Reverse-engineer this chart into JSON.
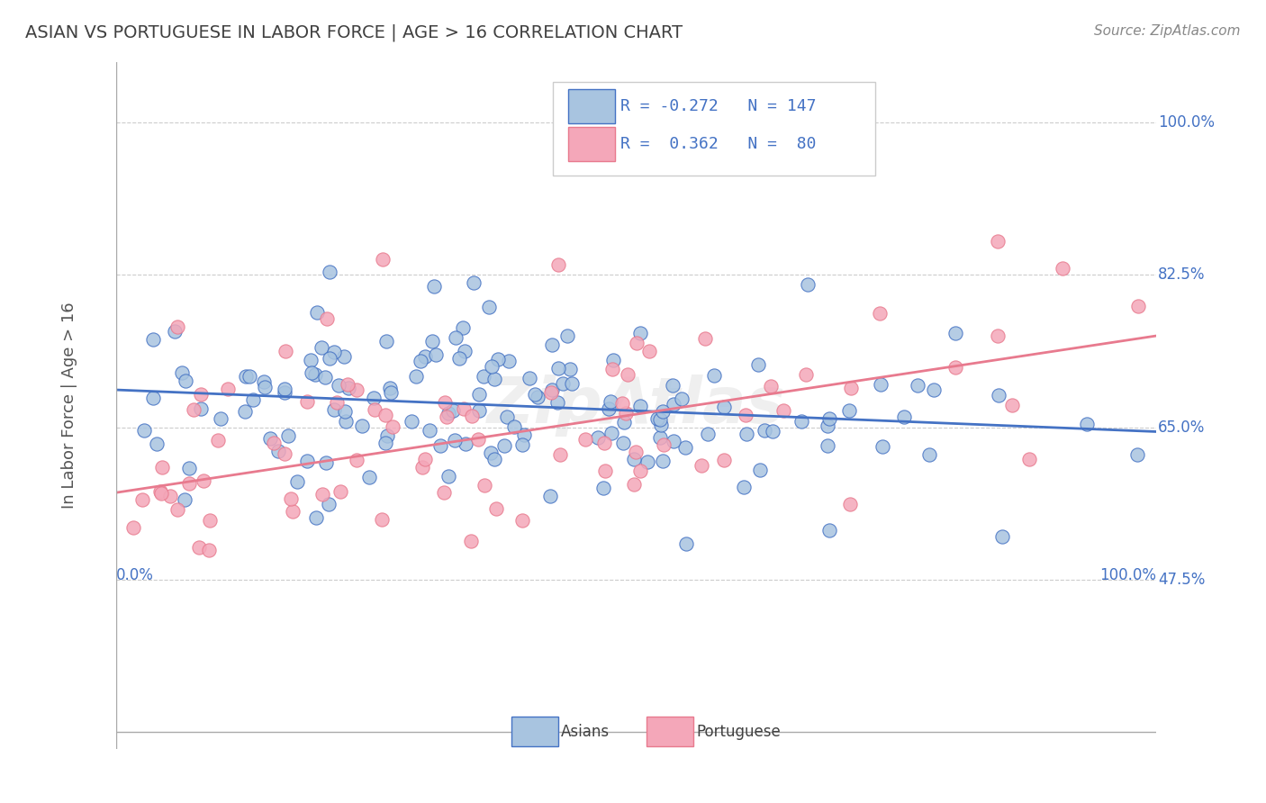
{
  "title": "ASIAN VS PORTUGUESE IN LABOR FORCE | AGE > 16 CORRELATION CHART",
  "source": "Source: ZipAtlas.com",
  "xlabel": "",
  "ylabel": "In Labor Force | Age > 16",
  "xlim": [
    0.0,
    1.0
  ],
  "ylim": [
    0.3,
    1.05
  ],
  "x_tick_labels": [
    "0.0%",
    "100.0%"
  ],
  "y_tick_labels_right": [
    "100.0%",
    "82.5%",
    "65.0%",
    "47.5%"
  ],
  "y_tick_values_right": [
    1.0,
    0.825,
    0.65,
    0.475
  ],
  "asian_R": -0.272,
  "asian_N": 147,
  "portuguese_R": 0.362,
  "portuguese_N": 80,
  "asian_color": "#a8c4e0",
  "portuguese_color": "#f4a7b9",
  "asian_line_color": "#4472c4",
  "portuguese_line_color": "#e87a8e",
  "background_color": "#ffffff",
  "grid_color": "#cccccc",
  "title_color": "#404040",
  "label_color": "#4472c4",
  "asian_line_start_y": 0.693,
  "asian_line_end_y": 0.645,
  "portuguese_line_start_y": 0.575,
  "portuguese_line_end_y": 0.755,
  "watermark": "ZipAtlas"
}
